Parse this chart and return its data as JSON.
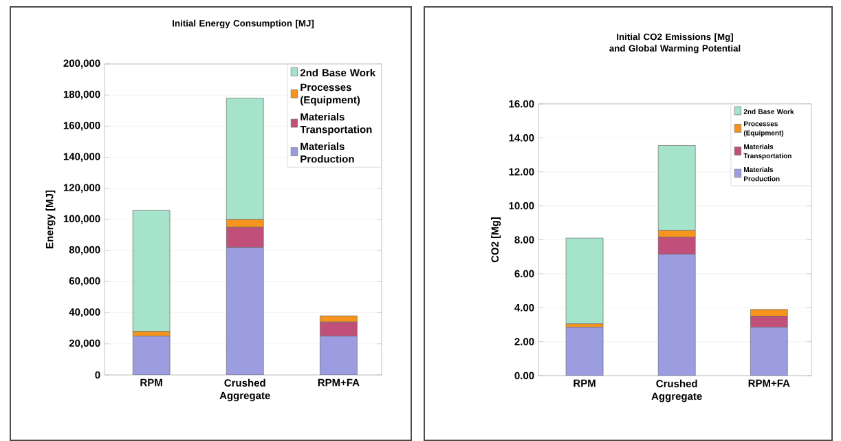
{
  "chart_data": [
    {
      "type": "bar",
      "stacked": true,
      "title": "Initial Energy Consumption [MJ]",
      "ylabel": "Energy [MJ]",
      "categories": [
        "RPM",
        "Crushed Aggregate",
        "RPM+FA"
      ],
      "series": [
        {
          "name": "Materials Production",
          "color": "#9c9ce0",
          "values": [
            25000,
            82000,
            25000
          ]
        },
        {
          "name": "Materials Transportation",
          "color": "#c0507a",
          "values": [
            0,
            13000,
            9000
          ]
        },
        {
          "name": "Processes (Equipment)",
          "color": "#f7941d",
          "values": [
            3000,
            5000,
            4000
          ]
        },
        {
          "name": "2nd Base Work",
          "color": "#a6e3cb",
          "values": [
            78000,
            78000,
            0
          ]
        }
      ],
      "ylim": [
        0,
        200000
      ],
      "yticks": [
        0,
        {
          "value": 20000,
          "label": "20,000"
        },
        {
          "value": 40000,
          "label": "40,000"
        },
        {
          "value": 60000,
          "label": "60,000"
        },
        {
          "value": 80000,
          "label": "80,000"
        },
        {
          "value": 100000,
          "label": "100,000"
        },
        {
          "value": 120000,
          "label": "120,000"
        },
        {
          "value": 140000,
          "label": "140,000"
        },
        {
          "value": 160000,
          "label": "160,000"
        },
        {
          "value": 180000,
          "label": "180,000"
        },
        {
          "value": 200000,
          "label": "200,000"
        }
      ],
      "grid": "y",
      "legend": "top right"
    },
    {
      "type": "bar",
      "stacked": true,
      "title": "Initial CO2 Emissions [Mg] and Global Warming Potential",
      "ylabel": "CO2 [Mg]",
      "categories": [
        "RPM",
        "Crushed Aggregate",
        "RPM+FA"
      ],
      "series": [
        {
          "name": "Materials Production",
          "color": "#9c9ce0",
          "values": [
            2.85,
            7.15,
            2.85
          ]
        },
        {
          "name": "Materials Transportation",
          "color": "#c0507a",
          "values": [
            0,
            1.0,
            0.65
          ]
        },
        {
          "name": "Processes (Equipment)",
          "color": "#f7941d",
          "values": [
            0.2,
            0.4,
            0.4
          ]
        },
        {
          "name": "2nd Base Work",
          "color": "#a6e3cb",
          "values": [
            5.05,
            5.0,
            0
          ]
        }
      ],
      "ylim": [
        0,
        16
      ],
      "yticks": [
        {
          "value": 0,
          "label": "0.00"
        },
        {
          "value": 2,
          "label": "2.00"
        },
        {
          "value": 4,
          "label": "4.00"
        },
        {
          "value": 6,
          "label": "6.00"
        },
        {
          "value": 8,
          "label": "8.00"
        },
        {
          "value": 10,
          "label": "10.00"
        },
        {
          "value": 12,
          "label": "12.00"
        },
        {
          "value": 14,
          "label": "14.00"
        },
        {
          "value": 16,
          "label": "16.00"
        }
      ],
      "grid": "y",
      "legend": "top right"
    }
  ]
}
